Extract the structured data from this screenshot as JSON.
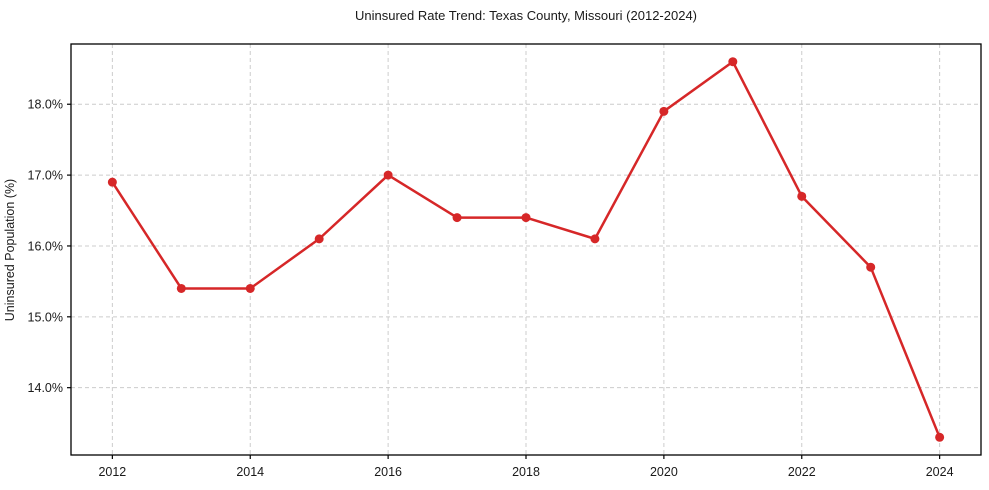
{
  "chart_data": {
    "type": "line",
    "title": "Uninsured Rate Trend: Texas County, Missouri (2012-2024)",
    "xlabel": "",
    "ylabel": "Uninsured Population (%)",
    "x": [
      2012,
      2013,
      2014,
      2015,
      2016,
      2017,
      2018,
      2019,
      2020,
      2021,
      2022,
      2023,
      2024
    ],
    "values": [
      16.9,
      15.4,
      15.4,
      16.1,
      17.0,
      16.4,
      16.4,
      16.1,
      17.9,
      18.6,
      16.7,
      15.7,
      13.3
    ],
    "xlim": [
      2011.4,
      2024.6
    ],
    "ylim": [
      13.05,
      18.85
    ],
    "xticks": {
      "values": [
        2012,
        2014,
        2016,
        2018,
        2020,
        2022,
        2024
      ],
      "labels": [
        "2012",
        "2014",
        "2016",
        "2018",
        "2020",
        "2022",
        "2024"
      ]
    },
    "yticks": {
      "values": [
        14,
        15,
        16,
        17,
        18
      ],
      "labels": [
        "14.0%",
        "15.0%",
        "16.0%",
        "17.0%",
        "18.0%"
      ]
    },
    "grid": true,
    "grid_style": "dashed",
    "legend": "none",
    "marker": "circle",
    "colors": {
      "line": "#d62728",
      "marker": "#d62728",
      "grid": "#cccccc",
      "spine": "#000000",
      "text": "#1a1a1a",
      "background": "#ffffff"
    }
  }
}
